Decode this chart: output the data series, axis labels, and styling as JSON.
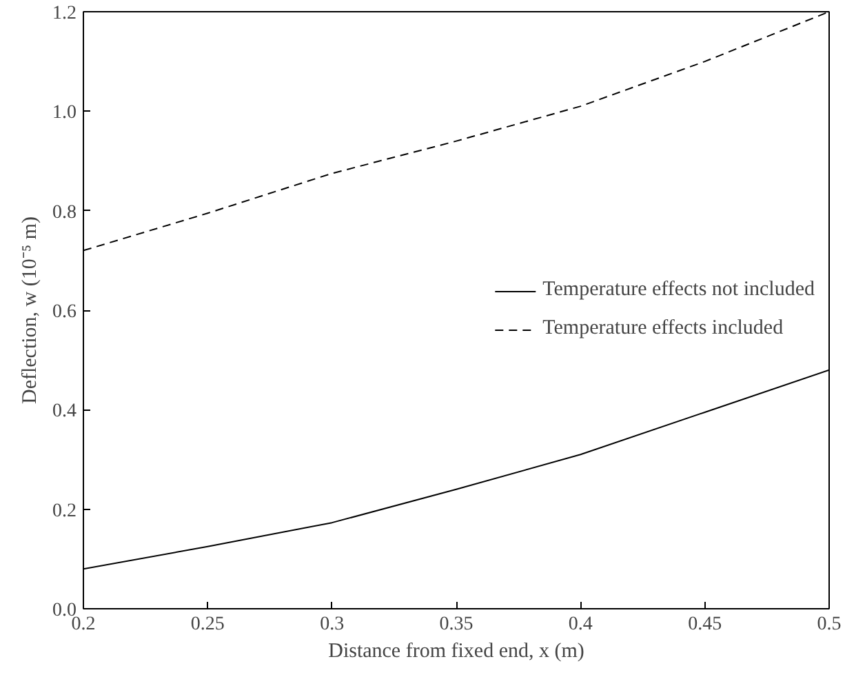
{
  "chart_data": {
    "type": "line",
    "xlabel": "Distance from fixed end, x (m)",
    "ylabel": "Deflection, w (10⁻⁵ m)",
    "x": [
      0.2,
      0.25,
      0.3,
      0.35,
      0.4,
      0.45,
      0.5
    ],
    "series": [
      {
        "name": "Temperature effects not included",
        "color": "#000000",
        "line_style": "solid",
        "values": [
          0.08,
          0.125,
          0.173,
          0.24,
          0.31,
          0.395,
          0.48
        ]
      },
      {
        "name": "Temperature effects included",
        "color": "#000000",
        "line_style": "dashed",
        "values": [
          0.72,
          0.795,
          0.875,
          0.94,
          1.01,
          1.1,
          1.2
        ]
      }
    ],
    "xlim": [
      0.2,
      0.5
    ],
    "xticks": [
      0.2,
      0.25,
      0.3,
      0.35,
      0.4,
      0.45,
      0.5
    ],
    "ylim": [
      0,
      1.2
    ],
    "yticks": [
      {
        "value": 0,
        "label": "0.0"
      },
      0.2,
      0.4,
      0.6,
      0.8,
      {
        "value": 1,
        "label": "1.0"
      },
      1.2
    ],
    "grid": false,
    "legend": "right",
    "marker": "none"
  }
}
